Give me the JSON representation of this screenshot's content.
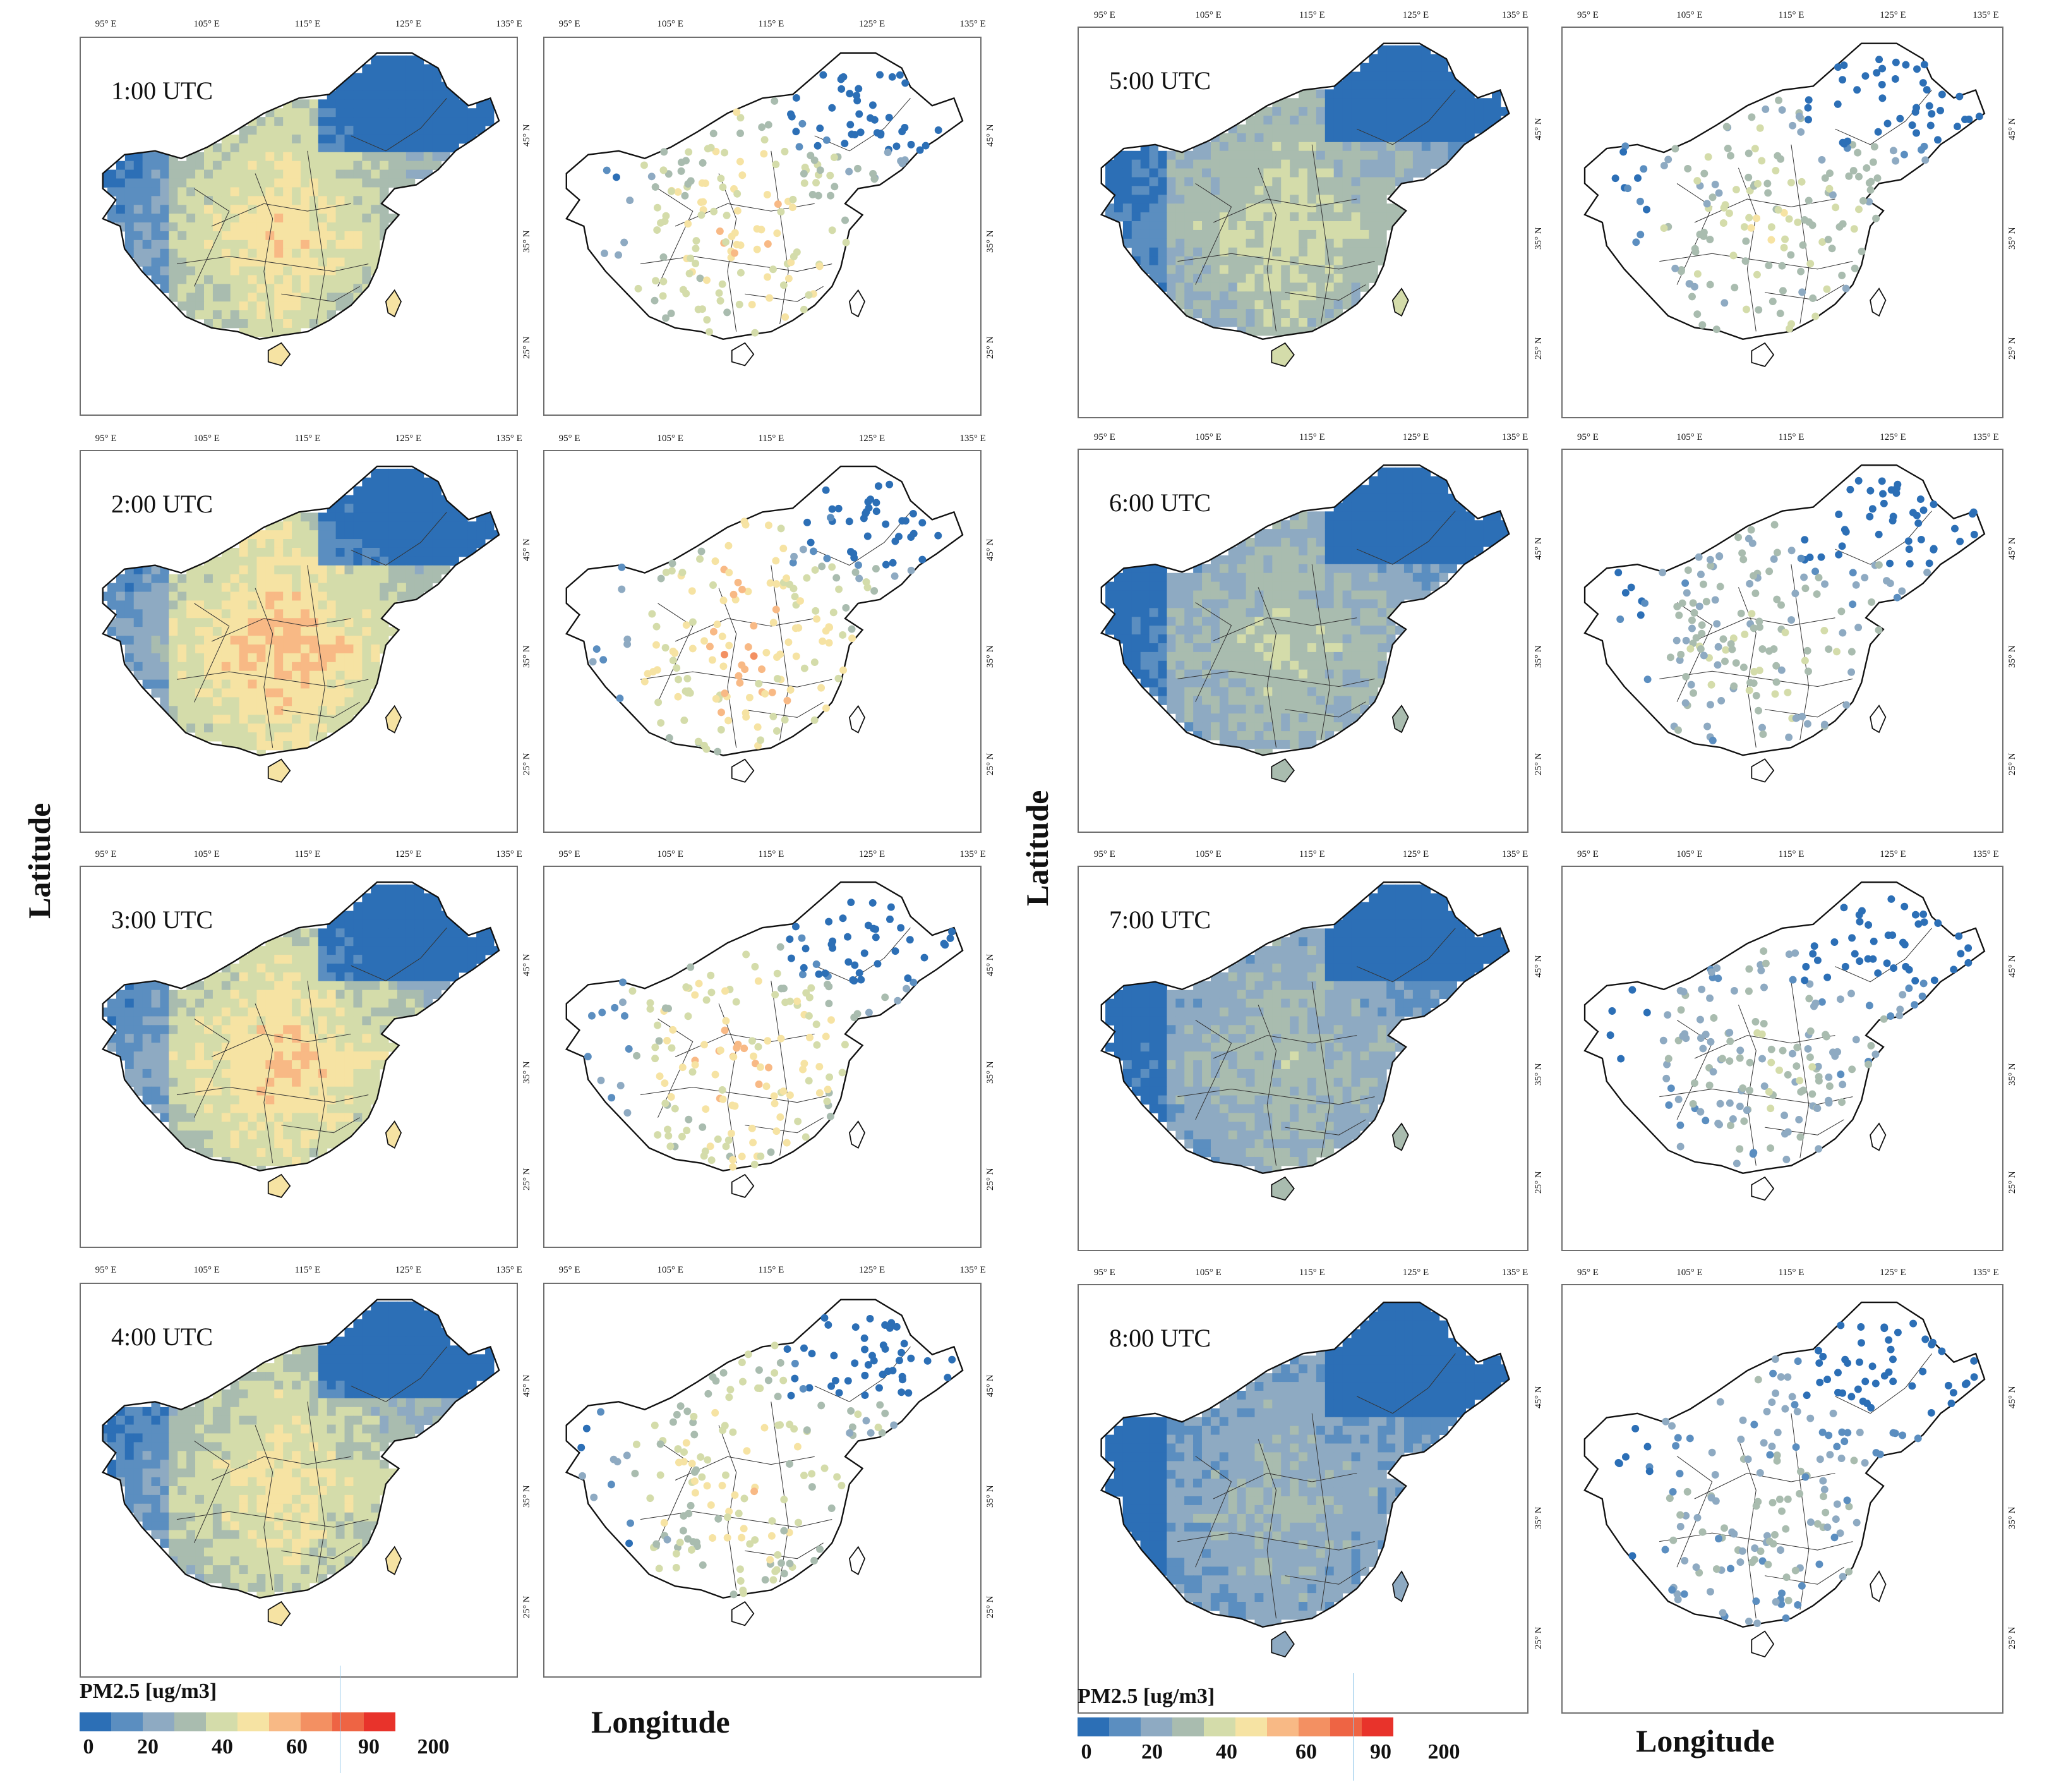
{
  "colors": {
    "scale": [
      "#2c6fb6",
      "#5b8ec0",
      "#8eaac2",
      "#a9bcaf",
      "#d4dcaa",
      "#f6e3a3",
      "#f8b985",
      "#f39062",
      "#ee6444",
      "#e8332b"
    ],
    "outline": "#111111",
    "border": "#555555"
  },
  "longitude_ticks": [
    "95° E",
    "105° E",
    "115° E",
    "125° E",
    "135° E"
  ],
  "latitude_ticks": [
    "45° N",
    "35° N",
    "25° N"
  ],
  "axis_titles": {
    "latitude": "Latitude",
    "longitude": "Longitude"
  },
  "legend": {
    "title": "PM2.5 [ug/m3]",
    "labels": [
      "0",
      "20",
      "40",
      "60",
      "90",
      "200"
    ]
  },
  "hours": [
    {
      "label": "1:00 UTC",
      "level": 0.7
    },
    {
      "label": "2:00 UTC",
      "level": 0.78
    },
    {
      "label": "3:00 UTC",
      "level": 0.74
    },
    {
      "label": "4:00 UTC",
      "level": 0.66
    },
    {
      "label": "5:00 UTC",
      "level": 0.55
    },
    {
      "label": "6:00 UTC",
      "level": 0.48
    },
    {
      "label": "7:00 UTC",
      "level": 0.43
    },
    {
      "label": "8:00 UTC",
      "level": 0.38
    }
  ]
}
